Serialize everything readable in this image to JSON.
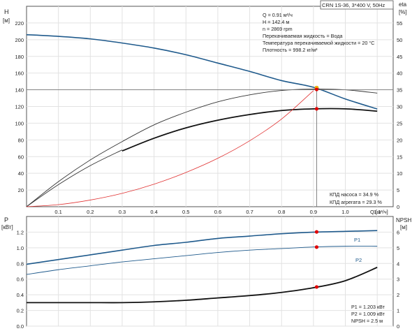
{
  "chart_data": [
    {
      "type": "line",
      "id": "head-efficiency",
      "header_label": "CRN 1S-36, 3*400 V, 50Hz",
      "xlabel": "Q [м³/ч]",
      "xlim": [
        0,
        1.15
      ],
      "xticks": [
        "0.1",
        "0.2",
        "0.3",
        "0.4",
        "0.5",
        "0.6",
        "0.7",
        "0.8",
        "0.9",
        "1.0",
        "1.1"
      ],
      "y_left": {
        "label": "H",
        "unit": "[м]",
        "lim": [
          0,
          240
        ],
        "ticks": [
          "20",
          "40",
          "60",
          "80",
          "100",
          "120",
          "140",
          "160",
          "180",
          "200",
          "220"
        ]
      },
      "y_right": {
        "label": "eta",
        "unit": "[%]",
        "lim": [
          0,
          60
        ],
        "ticks": [
          "0",
          "5",
          "10",
          "15",
          "20",
          "25",
          "30",
          "35",
          "40",
          "45",
          "50",
          "55"
        ]
      },
      "grid": true,
      "info_lines": [
        "Q = 0.91 м³/ч",
        "H = 142.4 м",
        "n = 2869 rpm",
        "Перекачиваемая жидкость = Вода",
        "Температура перекачиваемой жидкости = 20 °C",
        "Плотность = 998.2 кг/м³"
      ],
      "efficiency_notes": [
        "КПД насоса = 34.9 %",
        "КПД агрегата = 29.3 %"
      ],
      "series": [
        {
          "axis": "left",
          "color": "#1f5a8c",
          "width": 1.6,
          "x": [
            0,
            0.1,
            0.2,
            0.3,
            0.4,
            0.5,
            0.6,
            0.7,
            0.8,
            0.9,
            1.0,
            1.1
          ],
          "y": [
            206,
            204,
            201,
            196,
            190,
            182,
            172,
            162,
            151,
            143,
            129,
            117
          ]
        },
        {
          "axis": "right",
          "color": "#333333",
          "width": 0.9,
          "x": [
            0,
            0.1,
            0.2,
            0.3,
            0.4,
            0.5,
            0.6,
            0.7,
            0.8,
            0.9,
            1.0,
            1.1
          ],
          "y": [
            0,
            7.5,
            14,
            19.5,
            24.5,
            28.3,
            31.4,
            33.5,
            34.8,
            35.2,
            35.0,
            34.0
          ]
        },
        {
          "axis": "right",
          "color": "#333333",
          "width": 0.9,
          "x": [
            0,
            0.1,
            0.2,
            0.3
          ],
          "y": [
            0,
            6.6,
            12.3,
            17.0
          ]
        },
        {
          "axis": "right",
          "color": "#111111",
          "width": 1.8,
          "x": [
            0.3,
            0.4,
            0.5,
            0.6,
            0.7,
            0.8,
            0.9,
            1.0,
            1.1
          ],
          "y": [
            16.7,
            20.5,
            23.6,
            25.9,
            27.6,
            28.8,
            29.3,
            29.3,
            28.6
          ]
        },
        {
          "axis": "left",
          "color": "#e03030",
          "width": 0.8,
          "x": [
            0,
            0.1,
            0.2,
            0.3,
            0.4,
            0.5,
            0.6,
            0.7,
            0.8,
            0.9
          ],
          "y": [
            0,
            2.5,
            8,
            16,
            27,
            41,
            58,
            79,
            105,
            139
          ]
        }
      ],
      "duty_point": {
        "x": 0.91,
        "y": 142.4
      },
      "markers": [
        {
          "axis": "left",
          "x": 0.91,
          "y": 142.4,
          "color": "#ffcc00"
        },
        {
          "axis": "left",
          "x": 0.91,
          "y": 140.5,
          "color": "#e00000"
        },
        {
          "axis": "left",
          "x": 0.91,
          "y": 117.2,
          "color": "#e00000"
        }
      ]
    },
    {
      "type": "line",
      "id": "power-npsh",
      "xlim": [
        0,
        1.15
      ],
      "y_left": {
        "label": "P",
        "unit": "[кВт]",
        "lim": [
          0,
          1.4
        ],
        "ticks": [
          "0.0",
          "0.2",
          "0.4",
          "0.6",
          "0.8",
          "1.0",
          "1.2"
        ]
      },
      "y_right": {
        "label": "NPSH",
        "unit": "[м]",
        "lim": [
          0,
          7
        ],
        "ticks": [
          "0",
          "1",
          "2",
          "3",
          "4",
          "5",
          "6"
        ]
      },
      "grid": true,
      "series_labels": [
        "P1",
        "P2"
      ],
      "values": [
        "P1 = 1.203 кВт",
        "P2 = 1.009 кВт",
        "NPSH = 2.5 м"
      ],
      "series": [
        {
          "name": "P1",
          "axis": "left",
          "color": "#1f5a8c",
          "width": 1.6,
          "x": [
            0,
            0.1,
            0.2,
            0.3,
            0.4,
            0.5,
            0.6,
            0.7,
            0.8,
            0.9,
            1.0,
            1.1
          ],
          "y": [
            0.79,
            0.85,
            0.91,
            0.97,
            1.03,
            1.07,
            1.12,
            1.15,
            1.18,
            1.2,
            1.21,
            1.22
          ]
        },
        {
          "name": "P2",
          "axis": "left",
          "color": "#1f5a8c",
          "width": 0.9,
          "x": [
            0,
            0.1,
            0.2,
            0.3,
            0.4,
            0.5,
            0.6,
            0.7,
            0.8,
            0.9,
            1.0,
            1.1
          ],
          "y": [
            0.66,
            0.72,
            0.77,
            0.82,
            0.86,
            0.9,
            0.94,
            0.97,
            0.99,
            1.01,
            1.02,
            1.02
          ]
        },
        {
          "axis": "right",
          "color": "#111111",
          "width": 1.8,
          "x": [
            0,
            0.1,
            0.2,
            0.3,
            0.4,
            0.5,
            0.6,
            0.7,
            0.8,
            0.9,
            1.0,
            1.1
          ],
          "y": [
            1.5,
            1.5,
            1.5,
            1.5,
            1.55,
            1.65,
            1.8,
            1.95,
            2.15,
            2.45,
            2.9,
            3.75
          ]
        }
      ],
      "markers": [
        {
          "axis": "left",
          "x": 0.91,
          "y": 1.203,
          "color": "#e00000"
        },
        {
          "axis": "left",
          "x": 0.91,
          "y": 1.009,
          "color": "#e00000"
        },
        {
          "axis": "right",
          "x": 0.91,
          "y": 2.5,
          "color": "#e00000"
        }
      ]
    }
  ]
}
